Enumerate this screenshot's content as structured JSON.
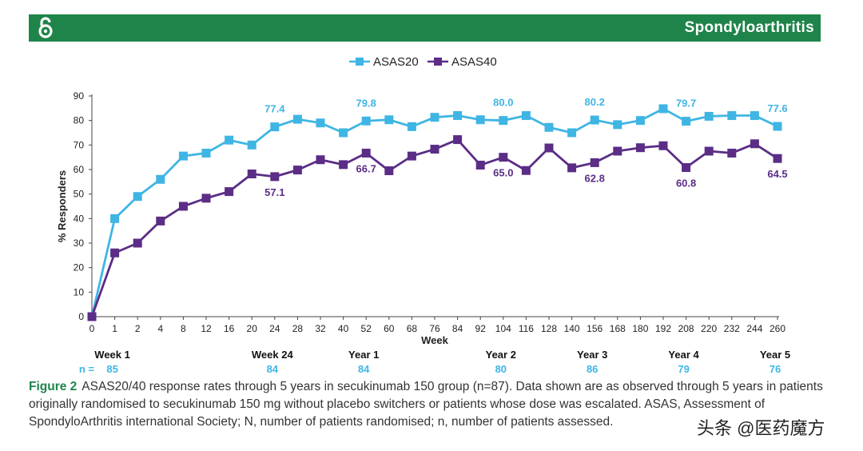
{
  "header": {
    "logo_icon": "open-access-icon",
    "title": "Spondyloarthritis",
    "color": "#1e8449"
  },
  "chart_data": {
    "type": "line",
    "title": "",
    "xlabel": "Week",
    "ylabel": "% Responders",
    "ylim": [
      0,
      90
    ],
    "yticks": [
      0,
      10,
      20,
      30,
      40,
      50,
      60,
      70,
      80,
      90
    ],
    "categories": [
      "0",
      "1",
      "2",
      "4",
      "8",
      "12",
      "16",
      "20",
      "24",
      "28",
      "32",
      "40",
      "52",
      "60",
      "68",
      "76",
      "84",
      "92",
      "104",
      "116",
      "128",
      "140",
      "156",
      "168",
      "180",
      "192",
      "208",
      "220",
      "232",
      "244",
      "260"
    ],
    "legend_position": "top-center",
    "series": [
      {
        "name": "ASAS20",
        "color": "#3fb5e4",
        "marker": "square",
        "values": [
          0,
          40,
          49,
          56,
          65.5,
          66.7,
          72,
          70,
          77.4,
          80.5,
          79,
          75,
          79.8,
          80.3,
          77.5,
          81.3,
          82,
          80.3,
          80.0,
          82,
          77.2,
          75,
          80.2,
          78.3,
          80,
          84.8,
          79.7,
          81.7,
          82,
          82,
          77.6
        ]
      },
      {
        "name": "ASAS40",
        "color": "#5b2d86",
        "marker": "square",
        "values": [
          0,
          26,
          30,
          39,
          45,
          48.3,
          51,
          58.2,
          57.1,
          59.8,
          64,
          62,
          66.7,
          59.5,
          65.5,
          68.3,
          72.2,
          61.8,
          65.0,
          59.6,
          68.8,
          60.7,
          62.8,
          67.5,
          68.9,
          69.7,
          60.8,
          67.5,
          66.7,
          70.5,
          64.5
        ]
      }
    ],
    "annotations": [
      {
        "series": 0,
        "index": 8,
        "text": "77.4"
      },
      {
        "series": 0,
        "index": 12,
        "text": "79.8"
      },
      {
        "series": 0,
        "index": 18,
        "text": "80.0"
      },
      {
        "series": 0,
        "index": 22,
        "text": "80.2"
      },
      {
        "series": 0,
        "index": 26,
        "text": "79.7"
      },
      {
        "series": 0,
        "index": 30,
        "text": "77.6"
      },
      {
        "series": 1,
        "index": 8,
        "text": "57.1"
      },
      {
        "series": 1,
        "index": 12,
        "text": "66.7"
      },
      {
        "series": 1,
        "index": 18,
        "text": "65.0"
      },
      {
        "series": 1,
        "index": 22,
        "text": "62.8"
      },
      {
        "series": 1,
        "index": 26,
        "text": "60.8"
      },
      {
        "series": 1,
        "index": 30,
        "text": "64.5"
      }
    ],
    "milestones": [
      {
        "index": 1,
        "label": "Week 1",
        "n": "85"
      },
      {
        "index": 8,
        "label": "Week 24",
        "n": "84"
      },
      {
        "index": 12,
        "label": "Year 1",
        "n": "84"
      },
      {
        "index": 18,
        "label": "Year 2",
        "n": "80"
      },
      {
        "index": 22,
        "label": "Year 3",
        "n": "86"
      },
      {
        "index": 26,
        "label": "Year 4",
        "n": "79"
      },
      {
        "index": 30,
        "label": "Year 5",
        "n": "76"
      }
    ],
    "n_label": "n ="
  },
  "caption": {
    "label": "Figure 2",
    "text": "ASAS20/40 response rates through 5 years in secukinumab 150 group (n=87). Data shown are as observed through 5 years in patients originally randomised to secukinumab 150 mg without placebo switchers or patients whose dose was escalated. ASAS, Assessment of SpondyloArthritis international Society; N, number of patients randomised; n, number of patients assessed."
  },
  "watermark": {
    "text": "头条 @医药魔方"
  }
}
